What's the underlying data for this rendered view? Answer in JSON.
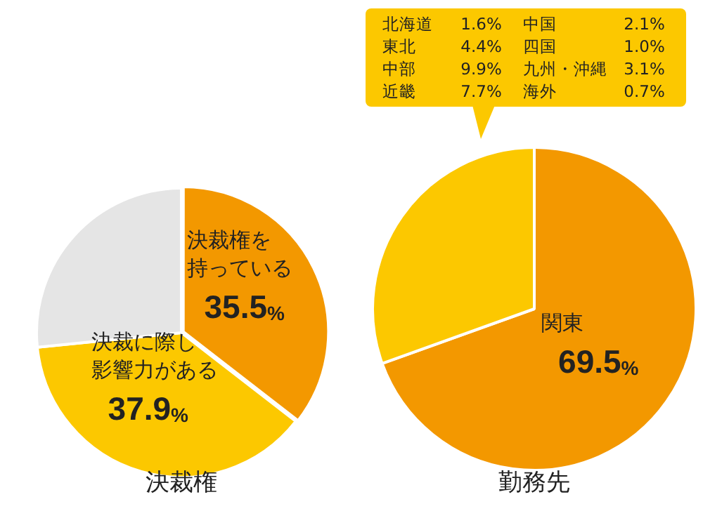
{
  "chart_data": [
    {
      "type": "pie",
      "title": "決裁権",
      "categories": [
        "決裁権を持っている",
        "決裁に際し影響力がある",
        null
      ],
      "values": [
        35.5,
        37.9,
        26.6
      ],
      "colors": [
        "#f39800",
        "#fcc800",
        "#e5e5e5"
      ],
      "value_labels": [
        "35.5%",
        "37.9%",
        null
      ],
      "legend": false
    },
    {
      "type": "pie",
      "title": "勤務先",
      "categories": [
        "関東",
        null
      ],
      "values": [
        69.5,
        30.5
      ],
      "colors": [
        "#f39800",
        "#fcc800"
      ],
      "value_labels": [
        "69.5%",
        null
      ],
      "legend": false,
      "annotations": [
        "北海道 1.6%",
        "東北 4.4%",
        "中部 9.9%",
        "近畿 7.7%",
        "中国 2.1%",
        "四国 1.0%",
        "九州・沖縄 3.1%",
        "海外 0.7%"
      ]
    }
  ]
}
